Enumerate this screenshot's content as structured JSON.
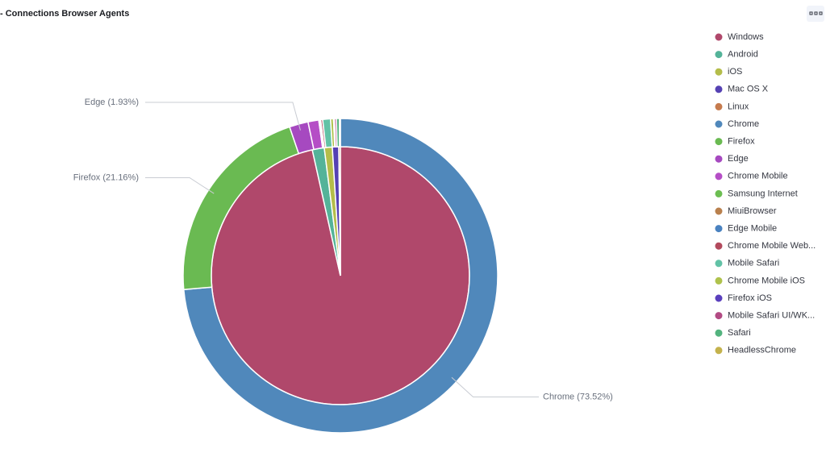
{
  "chart_data": {
    "type": "pie",
    "title": "- Connections Browser Agents",
    "series": [
      {
        "categories": [
          "Windows",
          "Android",
          "iOS",
          "Mac OS X",
          "Linux"
        ],
        "colors": [
          "#b0486b",
          "#54b399",
          "#b4bd4a",
          "#5541b3",
          "#c67b4e"
        ],
        "values": [
          96.5,
          1.5,
          1.0,
          0.8,
          0.2
        ]
      },
      {
        "categories": [
          "Chrome",
          "Firefox",
          "Edge",
          "Chrome Mobile",
          "Samsung Internet",
          "MiuiBrowser",
          "Edge Mobile",
          "Chrome Mobile Web...",
          "Mobile Safari",
          "Chrome Mobile iOS",
          "Firefox iOS",
          "Mobile Safari UI/WK...",
          "Safari",
          "HeadlessChrome"
        ],
        "colors": [
          "#5088bb",
          "#6aba52",
          "#a649c0",
          "#b54ec6",
          "#6cbe52",
          "#b9804d",
          "#4a82c0",
          "#b24a5d",
          "#62c2a6",
          "#afc24c",
          "#5a3fbd",
          "#b24b84",
          "#53b37e",
          "#c4b24c"
        ],
        "values": [
          73.52,
          21.16,
          1.93,
          1.1,
          0.1,
          0.05,
          0.05,
          0.2,
          0.8,
          0.3,
          0.1,
          0.2,
          0.3,
          0.1
        ],
        "value_labels": [
          "Chrome (73.52%)",
          "Firefox (21.16%)",
          "Edge (1.93%)",
          null,
          null,
          null,
          null,
          null,
          null,
          null,
          null,
          null,
          null,
          null
        ]
      }
    ]
  }
}
